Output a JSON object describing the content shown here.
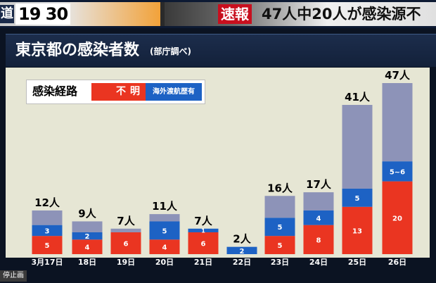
{
  "banner": {
    "program_name": "道",
    "program_time": "19 30",
    "sokuho": "速報",
    "headline": "47人中20人が感染源不"
  },
  "chart_data": {
    "type": "bar",
    "stacked": true,
    "title": "東京都の感染者数",
    "subtitle": "(部庁調べ)",
    "legend_title": "感染経路",
    "categories": [
      "3月17日",
      "18日",
      "19日",
      "20日",
      "21日",
      "22日",
      "23日",
      "24日",
      "25日",
      "26日"
    ],
    "totals": [
      12,
      9,
      7,
      11,
      7,
      2,
      16,
      17,
      41,
      47
    ],
    "total_labels": [
      "12人",
      "9人",
      "7人",
      "11人",
      "7人",
      "2人",
      "16人",
      "17人",
      "41人",
      "47人"
    ],
    "series": [
      {
        "name": "不明",
        "color": "#ea3521",
        "values": [
          5,
          4,
          6,
          4,
          6,
          0,
          5,
          8,
          13,
          20
        ],
        "labels": [
          "5",
          "4",
          "6",
          "4",
          "6",
          "",
          "5",
          "8",
          "13",
          "20"
        ]
      },
      {
        "name": "海外渡航歴有",
        "color": "#1d62c4",
        "values": [
          3,
          2,
          0,
          5,
          1,
          2,
          5,
          4,
          5,
          5.5
        ],
        "labels": [
          "3",
          "2",
          "",
          "5",
          "1",
          "2",
          "5",
          "4",
          "5",
          "5~6"
        ]
      },
      {
        "name": "",
        "color": "#8d93b8",
        "values": [
          4,
          3,
          1,
          2,
          0,
          0,
          6,
          5,
          23,
          21.5
        ],
        "labels": [
          "",
          "",
          "",
          "",
          "",
          "",
          "",
          "",
          "",
          ""
        ]
      }
    ],
    "ylim": [
      0,
      47
    ],
    "grid": false,
    "legend_position": "top-left"
  },
  "footer": {
    "stop_label": "停止画"
  }
}
